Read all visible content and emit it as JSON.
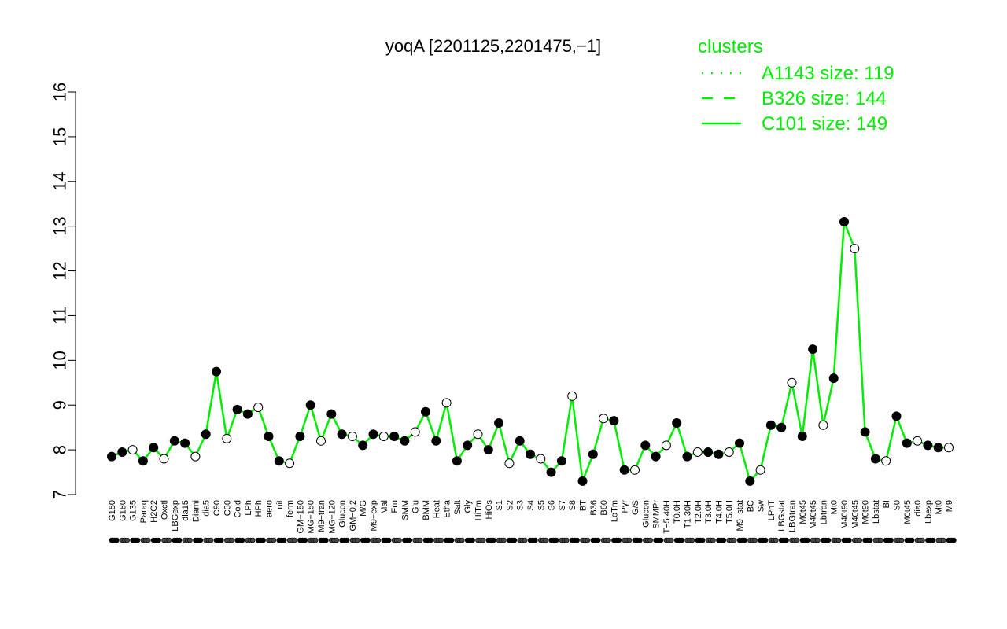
{
  "chart_data": {
    "type": "line",
    "title": "yoqA [2201125,2201475,−1]",
    "xlabel": "",
    "ylabel": "",
    "ylim": [
      7,
      16
    ],
    "yticks": [
      7,
      8,
      9,
      10,
      11,
      12,
      13,
      14,
      15,
      16
    ],
    "grid": false,
    "legend_placement": "top-right",
    "legend": {
      "title": "clusters",
      "entries": [
        {
          "label": "A1143 size: 119",
          "style": "dotted"
        },
        {
          "label": "B326 size: 144",
          "style": "dashed"
        },
        {
          "label": "C101 size: 149",
          "style": "solid"
        }
      ]
    },
    "line_color": "#00ee00",
    "x_labels": [
      "G150",
      "G180",
      "G135",
      "Paraq",
      "H2O2",
      "Oxctl",
      "LBGexp",
      "dia15",
      "Diami",
      "dia5",
      "C90",
      "C30",
      "Cold",
      "LPh",
      "HPh",
      "aero",
      "nit",
      "ferm",
      "GM+150",
      "MG+150",
      "M9−tran",
      "MG+120",
      "Glucon",
      "GM−0.2",
      "M/G",
      "M9−exp",
      "Mal",
      "Fru",
      "SMM",
      "Glu",
      "BMM",
      "Heat",
      "Etha",
      "Salt",
      "Gly",
      "HiTm",
      "HiOs",
      "S1",
      "S2",
      "S3",
      "S4",
      "S5",
      "S6",
      "S7",
      "S8",
      "BT",
      "B36",
      "B60",
      "LoTm",
      "Pyr",
      "G/S",
      "Glucon",
      "SMMPr",
      "T−5.40H",
      "T0.0H",
      "T1.30H",
      "T2.0H",
      "T3.0H",
      "T4.0H",
      "T5.0H",
      "M9−stat",
      "BC",
      "Sw",
      "LPhT",
      "LBGstat",
      "LBGtran",
      "M0t45",
      "M40t45",
      "Lbtran",
      "Mt0",
      "M40t90",
      "M40t45",
      "M0t90",
      "Lbstat",
      "BI",
      "S0",
      "M0t45",
      "dia0",
      "Lbexp",
      "Mt0",
      "M9"
    ],
    "series": [
      {
        "name": "A1143 size: 119",
        "values": [
          7.85,
          7.95,
          8.0,
          7.75,
          8.05,
          7.8,
          8.2,
          8.15,
          7.85,
          8.35,
          9.75,
          8.25,
          8.9,
          8.8,
          8.95,
          8.3,
          7.75,
          7.7,
          8.3,
          9.0,
          8.2,
          8.8,
          8.35,
          8.3,
          8.1,
          8.35,
          8.3,
          8.3,
          8.2,
          8.4,
          8.85,
          8.2,
          9.05,
          7.75,
          8.1,
          8.35,
          8.0,
          8.6,
          7.7,
          8.2,
          7.9,
          7.8,
          7.5,
          7.75,
          9.2,
          7.3,
          7.9,
          8.7,
          8.65,
          7.55,
          7.55,
          8.1,
          7.85,
          8.1,
          8.6,
          7.85,
          7.95,
          7.95,
          7.9,
          7.95,
          8.15,
          7.3,
          7.55,
          8.55,
          8.5,
          9.5,
          8.3,
          10.25,
          8.55,
          9.6,
          13.1,
          12.5,
          8.4,
          7.8,
          7.75,
          8.75,
          8.15,
          8.2,
          8.1,
          8.05,
          8.05
        ]
      }
    ]
  }
}
